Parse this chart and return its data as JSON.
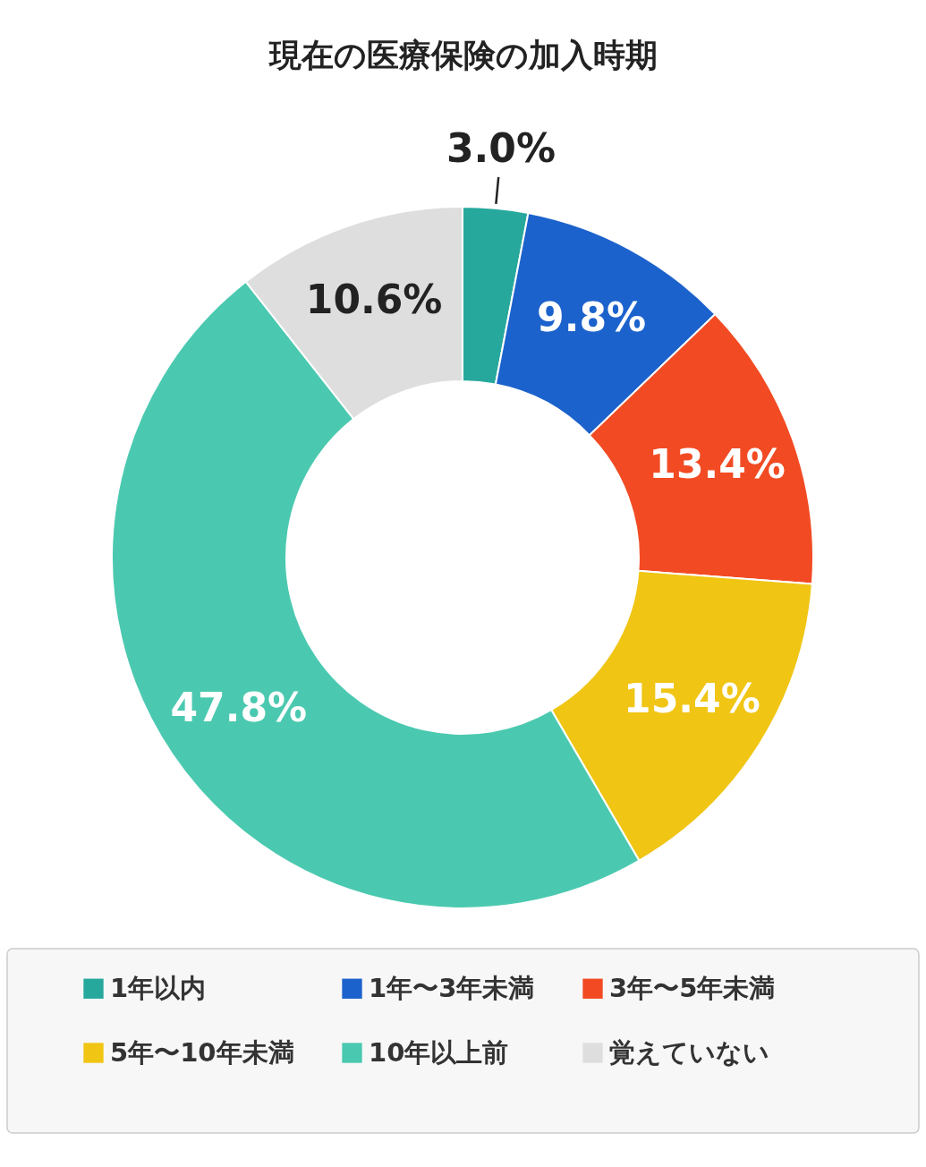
{
  "chart_data": {
    "type": "donut",
    "title": "現在の医療保険の加入時期",
    "categories": [
      "1年以内",
      "1年〜3年未満",
      "3年〜5年未満",
      "5年〜10年未満",
      "10年以上前",
      "覚えていない"
    ],
    "values": [
      3.0,
      9.8,
      13.4,
      15.4,
      47.8,
      10.6
    ],
    "colors": [
      "#27a89c",
      "#1c62cc",
      "#f24b23",
      "#f0c514",
      "#4bc9b0",
      "#dedede"
    ],
    "value_labels": [
      "3.0%",
      "9.8%",
      "13.4%",
      "15.4%",
      "47.8%",
      "10.6%"
    ],
    "legend": "bottom"
  }
}
